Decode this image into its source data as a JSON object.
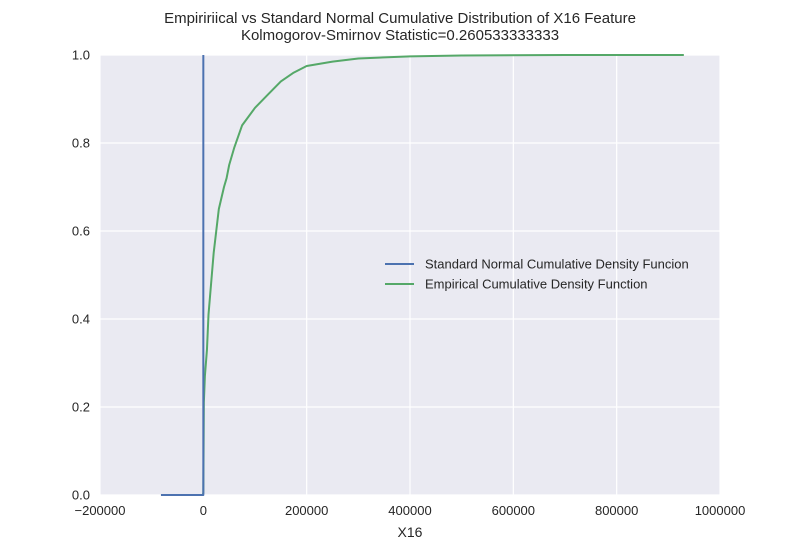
{
  "chart_data": {
    "type": "line",
    "title": "Empiririical vs Standard Normal Cumulative Distribution of X16 Feature",
    "subtitle": "Kolmogorov-Smirnov Statistic=0.260533333333",
    "xlabel": "X16",
    "ylabel": "",
    "xlim": [
      -200000,
      1000000
    ],
    "ylim": [
      0.0,
      1.0
    ],
    "x_ticks": [
      -200000,
      0,
      200000,
      400000,
      600000,
      800000,
      1000000
    ],
    "x_tick_labels": [
      "−200000",
      "0",
      "200000",
      "400000",
      "600000",
      "800000",
      "1000000"
    ],
    "y_ticks": [
      0.0,
      0.2,
      0.4,
      0.6,
      0.8,
      1.0
    ],
    "y_tick_labels": [
      "0.0",
      "0.2",
      "0.4",
      "0.6",
      "0.8",
      "1.0"
    ],
    "grid": true,
    "legend_position": "center-right",
    "series": [
      {
        "name": "Standard Normal Cumulative Density Funcion",
        "color": "#4c72b0",
        "x": [
          -82000,
          0,
          0,
          0,
          0
        ],
        "y": [
          0.0,
          0.0,
          0.5,
          1.0,
          1.0
        ]
      },
      {
        "name": "Empirical Cumulative Density Function",
        "color": "#55a868",
        "x": [
          -82000,
          -1000,
          0,
          1000,
          3000,
          7000,
          10000,
          15000,
          20000,
          25000,
          30000,
          40000,
          45000,
          50000,
          60000,
          75000,
          100000,
          125000,
          150000,
          175000,
          200000,
          250000,
          300000,
          400000,
          500000,
          700000,
          930000
        ],
        "y": [
          0.0,
          0.0,
          0.005,
          0.21,
          0.27,
          0.33,
          0.41,
          0.48,
          0.55,
          0.6,
          0.65,
          0.7,
          0.72,
          0.75,
          0.79,
          0.84,
          0.88,
          0.91,
          0.94,
          0.96,
          0.975,
          0.985,
          0.992,
          0.997,
          0.999,
          1.0,
          1.0
        ]
      }
    ]
  }
}
